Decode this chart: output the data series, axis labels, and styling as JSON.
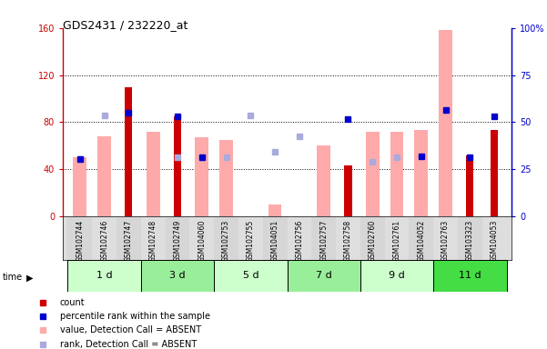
{
  "title": "GDS2431 / 232220_at",
  "samples": [
    "GSM102744",
    "GSM102746",
    "GSM102747",
    "GSM102748",
    "GSM102749",
    "GSM104060",
    "GSM102753",
    "GSM102755",
    "GSM104051",
    "GSM102756",
    "GSM102757",
    "GSM102758",
    "GSM102760",
    "GSM102761",
    "GSM104052",
    "GSM102763",
    "GSM103323",
    "GSM104053"
  ],
  "time_groups": [
    {
      "label": "1 d",
      "start": 0,
      "end": 2,
      "color": "#ccffcc"
    },
    {
      "label": "3 d",
      "start": 3,
      "end": 5,
      "color": "#99ee99"
    },
    {
      "label": "5 d",
      "start": 6,
      "end": 8,
      "color": "#ccffcc"
    },
    {
      "label": "7 d",
      "start": 9,
      "end": 11,
      "color": "#99ee99"
    },
    {
      "label": "9 d",
      "start": 12,
      "end": 14,
      "color": "#ccffcc"
    },
    {
      "label": "11 d",
      "start": 15,
      "end": 17,
      "color": "#44dd44"
    }
  ],
  "count_bars": [
    null,
    null,
    110,
    null,
    85,
    null,
    null,
    null,
    null,
    null,
    null,
    43,
    null,
    null,
    null,
    null,
    52,
    73
  ],
  "value_absent_bars": [
    50,
    68,
    null,
    72,
    null,
    67,
    65,
    null,
    10,
    null,
    60,
    null,
    72,
    72,
    73,
    158,
    null,
    null
  ],
  "percentile_rank": [
    49,
    null,
    88,
    null,
    85,
    50,
    null,
    null,
    null,
    null,
    null,
    83,
    null,
    null,
    51,
    90,
    50,
    85
  ],
  "rank_absent": [
    49,
    86,
    null,
    null,
    50,
    50,
    50,
    86,
    55,
    68,
    null,
    null,
    46,
    50,
    null,
    null,
    null,
    null
  ],
  "left_ylim": [
    0,
    160
  ],
  "right_ylim": [
    0,
    160
  ],
  "left_yticks": [
    0,
    40,
    80,
    120,
    160
  ],
  "left_yticklabels": [
    "0",
    "40",
    "80",
    "120",
    "160"
  ],
  "right_yticks": [
    0,
    40,
    80,
    120,
    160
  ],
  "right_yticklabels": [
    "0",
    "25",
    "50",
    "75",
    "100%"
  ],
  "count_color": "#cc0000",
  "percentile_color": "#0000cc",
  "value_absent_color": "#ffaaaa",
  "rank_absent_color": "#aaaadd",
  "bar_width": 0.55,
  "legend_items": [
    {
      "label": "count",
      "color": "#cc0000"
    },
    {
      "label": "percentile rank within the sample",
      "color": "#0000cc"
    },
    {
      "label": "value, Detection Call = ABSENT",
      "color": "#ffaaaa"
    },
    {
      "label": "rank, Detection Call = ABSENT",
      "color": "#aaaadd"
    }
  ]
}
